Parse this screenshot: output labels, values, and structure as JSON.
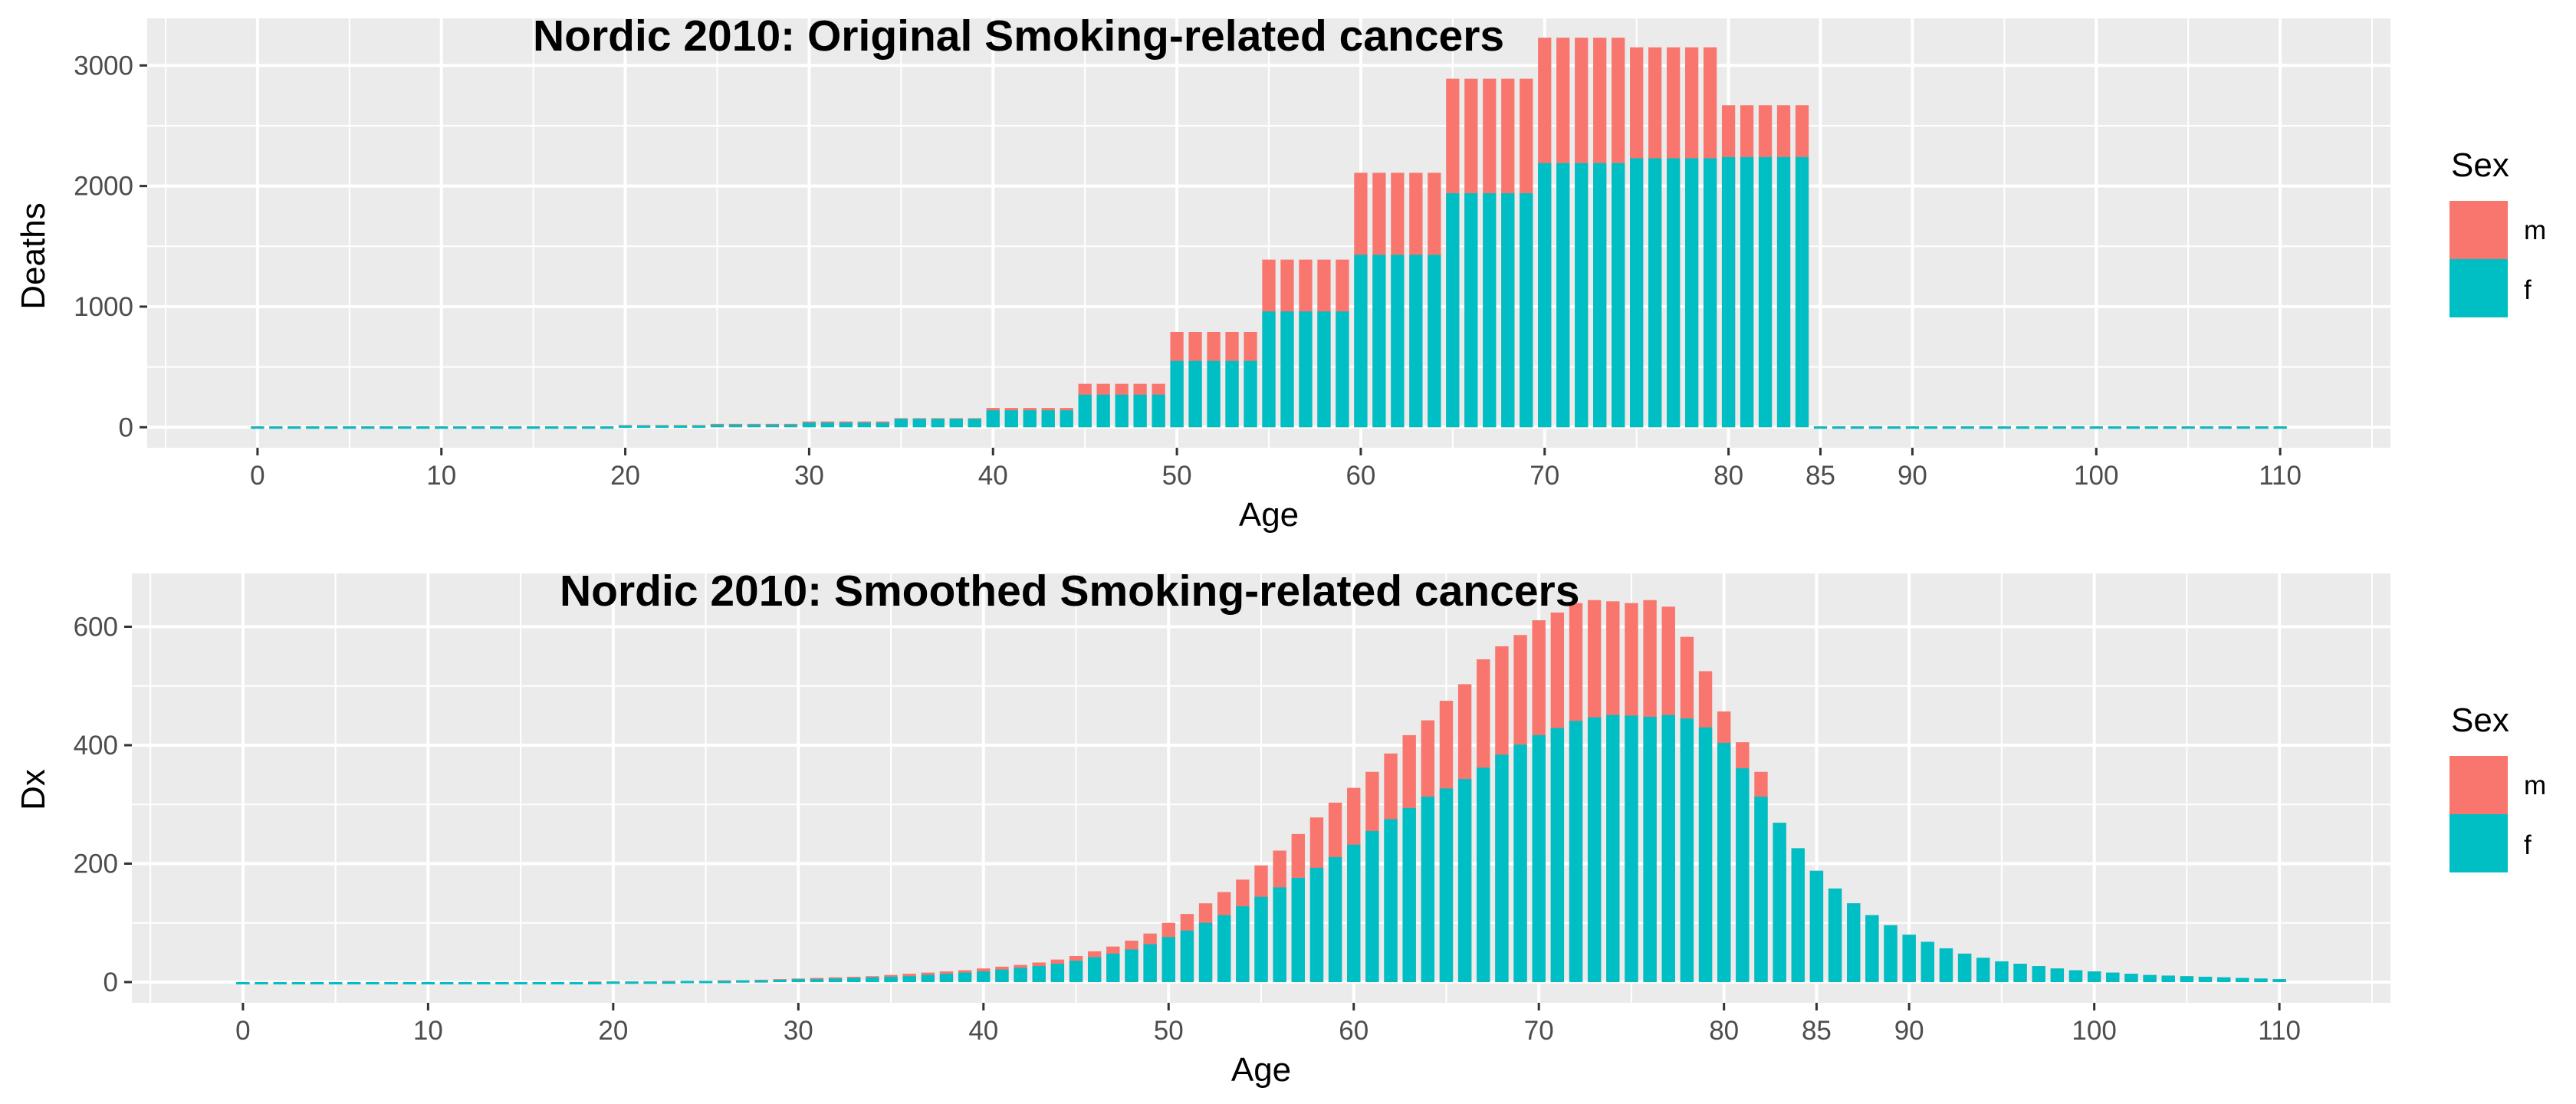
{
  "colors": {
    "m": "#F8766D",
    "f": "#00BFC4",
    "panel": "#EBEBEB",
    "grid": "#FFFFFF",
    "tick": "#333333"
  },
  "chart_data": [
    {
      "type": "bar",
      "title": "Nordic 2010: Original Smoking-related cancers",
      "xlabel": "Age",
      "ylabel": "Deaths",
      "xlim": [
        -6,
        116
      ],
      "ylim": [
        -170,
        3390
      ],
      "x_ticks": [
        0,
        10,
        20,
        30,
        40,
        50,
        60,
        70,
        80,
        85,
        90,
        100,
        110
      ],
      "x_tick_labels": [
        "0",
        "10",
        "20",
        "30",
        "40",
        "50",
        "60",
        "70",
        "80",
        "85",
        "90",
        "100",
        "110"
      ],
      "y_ticks": [
        0,
        1000,
        2000,
        3000
      ],
      "y_tick_labels": [
        "0",
        "1000",
        "2000",
        "3000"
      ],
      "grid": true,
      "legend": {
        "title": "Sex",
        "position": "right",
        "entries": [
          "m",
          "f"
        ]
      },
      "series": [
        {
          "name": "m",
          "groups": [
            {
              "from": 0,
              "to": 19,
              "value": 8
            },
            {
              "from": 20,
              "to": 24,
              "value": 18
            },
            {
              "from": 25,
              "to": 29,
              "value": 28
            },
            {
              "from": 30,
              "to": 34,
              "value": 48
            },
            {
              "from": 35,
              "to": 39,
              "value": 75
            },
            {
              "from": 40,
              "to": 44,
              "value": 160
            },
            {
              "from": 45,
              "to": 49,
              "value": 360
            },
            {
              "from": 50,
              "to": 54,
              "value": 790
            },
            {
              "from": 55,
              "to": 59,
              "value": 1390
            },
            {
              "from": 60,
              "to": 64,
              "value": 2110
            },
            {
              "from": 65,
              "to": 69,
              "value": 2890
            },
            {
              "from": 70,
              "to": 74,
              "value": 3230
            },
            {
              "from": 75,
              "to": 79,
              "value": 3150
            },
            {
              "from": 80,
              "to": 84,
              "value": 2670
            },
            {
              "from": 85,
              "to": 110,
              "value": 8
            }
          ]
        },
        {
          "name": "f",
          "groups": [
            {
              "from": 0,
              "to": 19,
              "value": 6
            },
            {
              "from": 20,
              "to": 24,
              "value": 14
            },
            {
              "from": 25,
              "to": 29,
              "value": 22
            },
            {
              "from": 30,
              "to": 34,
              "value": 38
            },
            {
              "from": 35,
              "to": 39,
              "value": 70
            },
            {
              "from": 40,
              "to": 44,
              "value": 140
            },
            {
              "from": 45,
              "to": 49,
              "value": 270
            },
            {
              "from": 50,
              "to": 54,
              "value": 550
            },
            {
              "from": 55,
              "to": 59,
              "value": 960
            },
            {
              "from": 60,
              "to": 64,
              "value": 1430
            },
            {
              "from": 65,
              "to": 69,
              "value": 1940
            },
            {
              "from": 70,
              "to": 74,
              "value": 2190
            },
            {
              "from": 75,
              "to": 79,
              "value": 2230
            },
            {
              "from": 80,
              "to": 84,
              "value": 2240
            },
            {
              "from": 85,
              "to": 110,
              "value": 6
            }
          ]
        }
      ]
    },
    {
      "type": "bar",
      "title": "Nordic 2010: Smoothed Smoking-related cancers",
      "xlabel": "Age",
      "ylabel": "Dx",
      "xlim": [
        -6,
        116
      ],
      "ylim": [
        -35,
        690
      ],
      "x_ticks": [
        0,
        10,
        20,
        30,
        40,
        50,
        60,
        70,
        80,
        85,
        90,
        100,
        110
      ],
      "x_tick_labels": [
        "0",
        "10",
        "20",
        "30",
        "40",
        "50",
        "60",
        "70",
        "80",
        "85",
        "90",
        "100",
        "110"
      ],
      "y_ticks": [
        0,
        200,
        400,
        600
      ],
      "y_tick_labels": [
        "0",
        "200",
        "400",
        "600"
      ],
      "grid": true,
      "legend": {
        "title": "Sex",
        "position": "right",
        "entries": [
          "m",
          "f"
        ]
      },
      "x": [
        0,
        1,
        2,
        3,
        4,
        5,
        6,
        7,
        8,
        9,
        10,
        11,
        12,
        13,
        14,
        15,
        16,
        17,
        18,
        19,
        20,
        21,
        22,
        23,
        24,
        25,
        26,
        27,
        28,
        29,
        30,
        31,
        32,
        33,
        34,
        35,
        36,
        37,
        38,
        39,
        40,
        41,
        42,
        43,
        44,
        45,
        46,
        47,
        48,
        49,
        50,
        51,
        52,
        53,
        54,
        55,
        56,
        57,
        58,
        59,
        60,
        61,
        62,
        63,
        64,
        65,
        66,
        67,
        68,
        69,
        70,
        71,
        72,
        73,
        74,
        75,
        76,
        77,
        78,
        79,
        80,
        81,
        82,
        83,
        84,
        85,
        86,
        87,
        88,
        89,
        90,
        91,
        92,
        93,
        94,
        95,
        96,
        97,
        98,
        99,
        100,
        101,
        102,
        103,
        104,
        105,
        106,
        107,
        108,
        109,
        110
      ],
      "series": [
        {
          "name": "m",
          "values": [
            0,
            0,
            0,
            0,
            0,
            0,
            0,
            0,
            0,
            0,
            0,
            0,
            0,
            0,
            0,
            0,
            0,
            0,
            0,
            1,
            1,
            1,
            1,
            2,
            2,
            2,
            3,
            3,
            4,
            5,
            6,
            7,
            8,
            9,
            10,
            12,
            14,
            16,
            18,
            20,
            23,
            26,
            29,
            33,
            38,
            44,
            52,
            60,
            70,
            82,
            100,
            115,
            133,
            152,
            173,
            197,
            222,
            250,
            278,
            303,
            328,
            355,
            386,
            417,
            442,
            475,
            503,
            545,
            567,
            586,
            611,
            624,
            640,
            645,
            643,
            640,
            645,
            634,
            583,
            525,
            457,
            405,
            355,
            269,
            226,
            188,
            158,
            133,
            113,
            96,
            80,
            68,
            57,
            48,
            41,
            35,
            31,
            27,
            23,
            20,
            18,
            16,
            14,
            12,
            11,
            10,
            9,
            8,
            7,
            6,
            5
          ]
        },
        {
          "name": "f",
          "values": [
            0,
            0,
            0,
            0,
            0,
            0,
            0,
            0,
            0,
            0,
            0,
            0,
            0,
            0,
            0,
            0,
            0,
            0,
            0,
            0,
            1,
            1,
            1,
            1,
            2,
            2,
            2,
            3,
            3,
            4,
            5,
            5,
            6,
            7,
            8,
            9,
            10,
            12,
            14,
            16,
            18,
            21,
            24,
            27,
            31,
            36,
            42,
            48,
            55,
            64,
            76,
            87,
            100,
            113,
            128,
            144,
            160,
            176,
            193,
            211,
            232,
            255,
            275,
            294,
            313,
            327,
            343,
            362,
            384,
            401,
            417,
            429,
            441,
            447,
            451,
            450,
            448,
            451,
            445,
            430,
            404,
            361,
            313,
            269,
            226,
            188,
            158,
            133,
            113,
            96,
            80,
            68,
            57,
            48,
            41,
            35,
            31,
            27,
            23,
            20,
            18,
            16,
            14,
            12,
            11,
            10,
            9,
            8,
            7,
            6,
            5
          ]
        }
      ]
    }
  ]
}
